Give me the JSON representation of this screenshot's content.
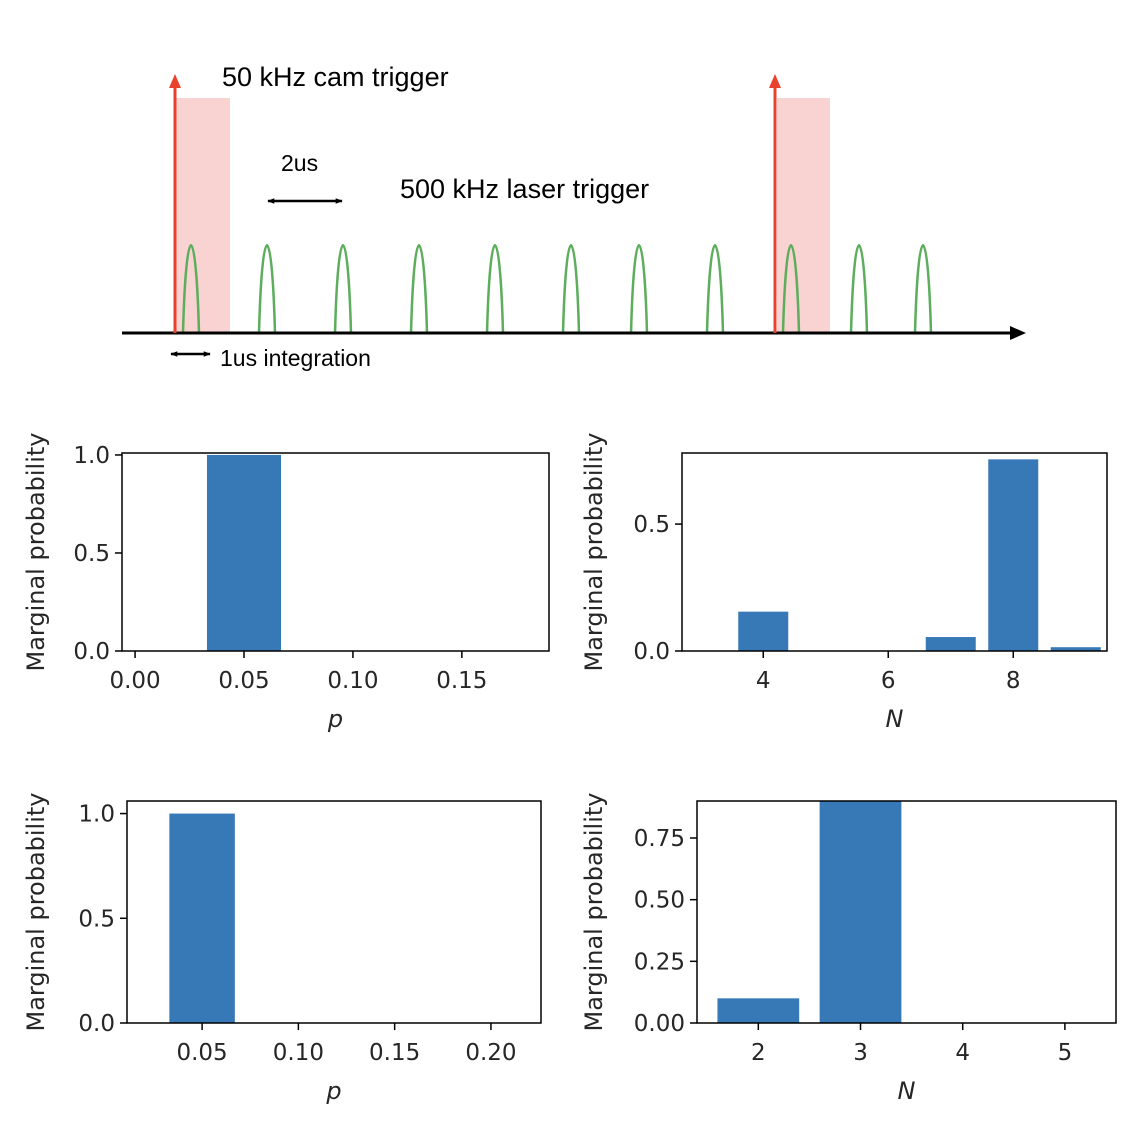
{
  "timing_diagram": {
    "cam_trigger_label": "50 kHz cam trigger",
    "laser_trigger_label": "500 kHz laser trigger",
    "period_label": "2us",
    "integration_label": "1us integration",
    "colors": {
      "cam_arrow": "#e8412e",
      "exposure_window": "#f9d2d2",
      "laser_pulse": "#5cad5c",
      "axis": "#000000"
    }
  },
  "chart_data": [
    {
      "type": "bar",
      "x": [
        0.05
      ],
      "values": [
        1.0
      ],
      "bar_width": 0.034,
      "xlabel": "p",
      "ylabel": "Marginal probability",
      "xlim": [
        -0.006,
        0.19
      ],
      "ylim": [
        0,
        1.01
      ],
      "xticks": [
        0.0,
        0.05,
        0.1,
        0.15
      ],
      "xtick_labels": [
        "0.00",
        "0.05",
        "0.10",
        "0.15"
      ],
      "yticks": [
        0.0,
        0.5,
        1.0
      ],
      "ytick_labels": [
        "0.0",
        "0.5",
        "1.0"
      ],
      "color": "#3778b6"
    },
    {
      "type": "bar",
      "x": [
        4,
        7,
        8,
        9
      ],
      "values": [
        0.155,
        0.055,
        0.755,
        0.015
      ],
      "bar_width": 0.8,
      "xlabel": "N",
      "ylabel": "Marginal probability",
      "xlim": [
        2.7,
        9.5
      ],
      "ylim": [
        0,
        0.78
      ],
      "xticks": [
        4,
        6,
        8
      ],
      "xtick_labels": [
        "4",
        "6",
        "8"
      ],
      "yticks": [
        0.0,
        0.5
      ],
      "ytick_labels": [
        "0.0",
        "0.5"
      ],
      "color": "#3778b6"
    },
    {
      "type": "bar",
      "x": [
        0.05
      ],
      "values": [
        1.0
      ],
      "bar_width": 0.034,
      "xlabel": "p",
      "ylabel": "Marginal probability",
      "xlim": [
        0.011,
        0.226
      ],
      "ylim": [
        0,
        1.06
      ],
      "xticks": [
        0.05,
        0.1,
        0.15,
        0.2
      ],
      "xtick_labels": [
        "0.05",
        "0.10",
        "0.15",
        "0.20"
      ],
      "yticks": [
        0.0,
        0.5,
        1.0
      ],
      "ytick_labels": [
        "0.0",
        "0.5",
        "1.0"
      ],
      "color": "#3778b6"
    },
    {
      "type": "bar",
      "x": [
        2,
        3
      ],
      "values": [
        0.1,
        0.9
      ],
      "bar_width": 0.8,
      "xlabel": "N",
      "ylabel": "Marginal probability",
      "xlim": [
        1.4,
        5.5
      ],
      "ylim": [
        0,
        0.9
      ],
      "xticks": [
        2,
        3,
        4,
        5
      ],
      "xtick_labels": [
        "2",
        "3",
        "4",
        "5"
      ],
      "yticks": [
        0.0,
        0.25,
        0.5,
        0.75
      ],
      "ytick_labels": [
        "0.00",
        "0.25",
        "0.50",
        "0.75"
      ],
      "color": "#3778b6"
    }
  ]
}
